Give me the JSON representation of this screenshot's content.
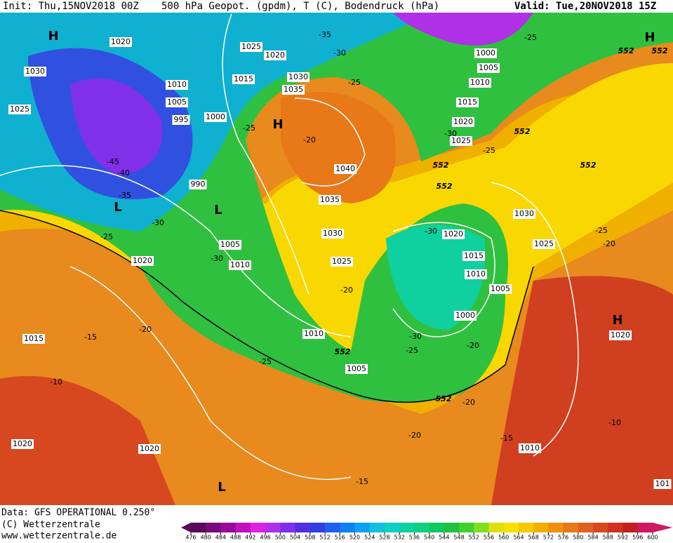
{
  "header": {
    "init": "Init: Thu,15NOV2018 00Z",
    "title": "500 hPa Geopot. (gpdm), T (C), Bodendruck (hPa)",
    "valid": "Valid: Tue,20NOV2018 15Z"
  },
  "footer": {
    "data": "Data: GFS OPERATIONAL 0.250°",
    "copyright": "(C) Wetterzentrale",
    "url": "www.wetterzentrale.de"
  },
  "color_scale": {
    "ticks": [
      476,
      480,
      484,
      488,
      492,
      496,
      500,
      504,
      508,
      512,
      516,
      520,
      524,
      528,
      532,
      536,
      540,
      544,
      548,
      552,
      556,
      560,
      564,
      568,
      572,
      576,
      580,
      584,
      588,
      592,
      596,
      600
    ],
    "colors": [
      "#5a0a5a",
      "#7a0a7a",
      "#9a0a9a",
      "#c010c0",
      "#e020e0",
      "#b030e8",
      "#8030e8",
      "#5030e0",
      "#3040e0",
      "#2060f0",
      "#1080f0",
      "#10a0f0",
      "#10c0e0",
      "#10d0c0",
      "#10d0a0",
      "#10d080",
      "#10c860",
      "#20c040",
      "#40d030",
      "#80e020",
      "#e0e010",
      "#f8e000",
      "#f8c800",
      "#f0b000",
      "#f09010",
      "#e87818",
      "#e06020",
      "#d84820",
      "#d03020",
      "#c02020",
      "#d01860"
    ]
  },
  "map": {
    "pressure_labels": [
      1020,
      1030,
      1025,
      1010,
      1005,
      995,
      990,
      1025,
      1020,
      1015,
      1000,
      1030,
      1035,
      1040,
      1035,
      1030,
      1025,
      1005,
      1010,
      1020,
      1015,
      1020,
      1020,
      1010,
      1005,
      1000,
      1005,
      1010,
      1015,
      1020,
      1025,
      1030,
      1025,
      1020,
      1015,
      1010,
      1005,
      1000,
      1010,
      1020,
      101
    ],
    "temperature_labels": [
      -35,
      -30,
      -25,
      -20,
      -25,
      -45,
      -40,
      -35,
      -30,
      -25,
      -30,
      -20,
      -30,
      -25,
      -20,
      -25,
      -25,
      -30,
      -30,
      -25,
      -20,
      -20,
      -25,
      -20,
      -15,
      -10,
      -20,
      -15,
      -10,
      -15
    ],
    "height_labels": [
      552,
      552,
      552,
      552,
      552,
      552,
      552,
      552
    ],
    "centers": [
      "H",
      "H",
      "H",
      "L",
      "L",
      "H",
      "L"
    ]
  }
}
